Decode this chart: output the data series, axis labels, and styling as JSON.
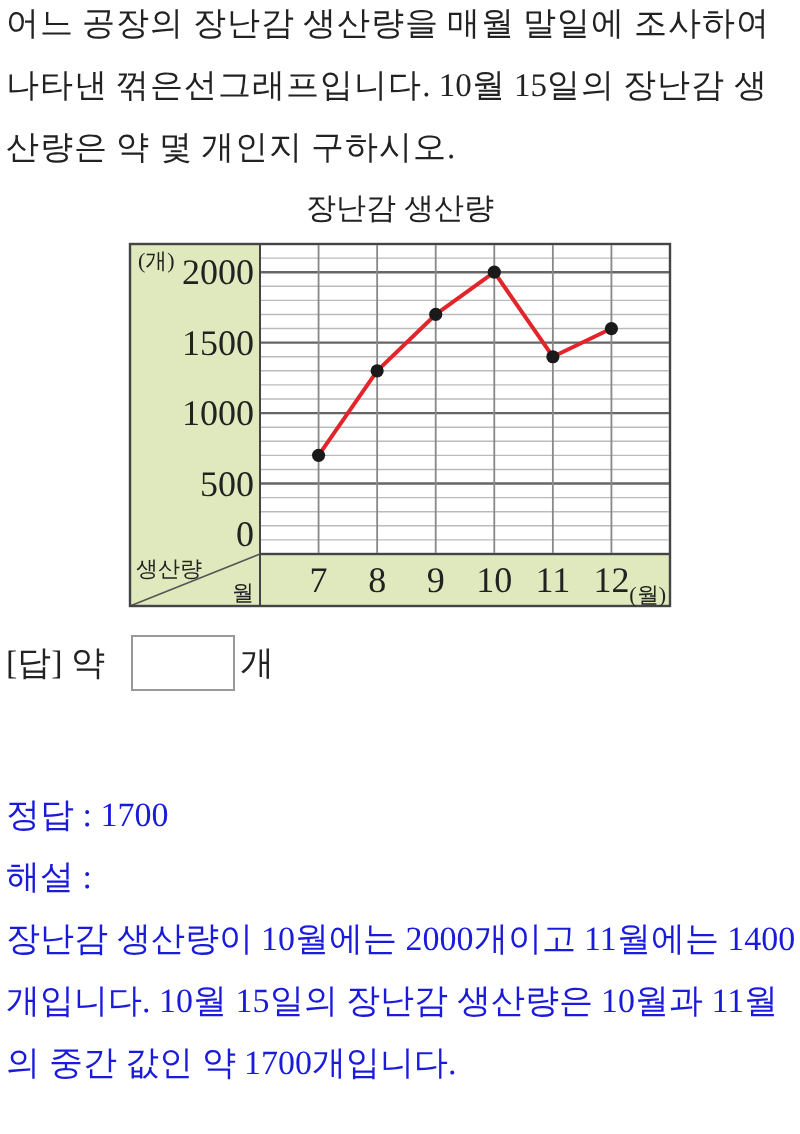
{
  "chart_data": {
    "type": "line",
    "title": "장난감 생산량",
    "ylabel": "(개)",
    "xlabel": "(월)",
    "x": [
      7,
      8,
      9,
      10,
      11,
      12
    ],
    "xlim": [
      6,
      13
    ],
    "xticks": [
      7,
      8,
      9,
      10,
      11,
      12
    ],
    "ylim": [
      0,
      2200
    ],
    "yticks": [
      0,
      500,
      1000,
      1500,
      2000
    ],
    "grid": true,
    "marker": "circle",
    "line_style": "solid",
    "series": [
      {
        "color": "#e3242b",
        "values": [
          700,
          1300,
          1700,
          2000,
          1400,
          1600
        ]
      }
    ],
    "annotations": [
      "어느 공장의 장난감 생산량을 매월 말일에 조사하여 나타낸 꺾은선그래프입니다. 10월 15일의 장난감 생산량은 약 몇 개인지 구하시오.",
      "생산량",
      "월",
      "[답] 약",
      "개",
      "정답 : 1700",
      "해설 :",
      "장난감 생산량이 10월에는 2000개이고 11월에는 1400개입니다. 10월 15일의 장난감 생산량은 10월과 11월의 중간 값인 약 1700개입니다."
    ]
  }
}
